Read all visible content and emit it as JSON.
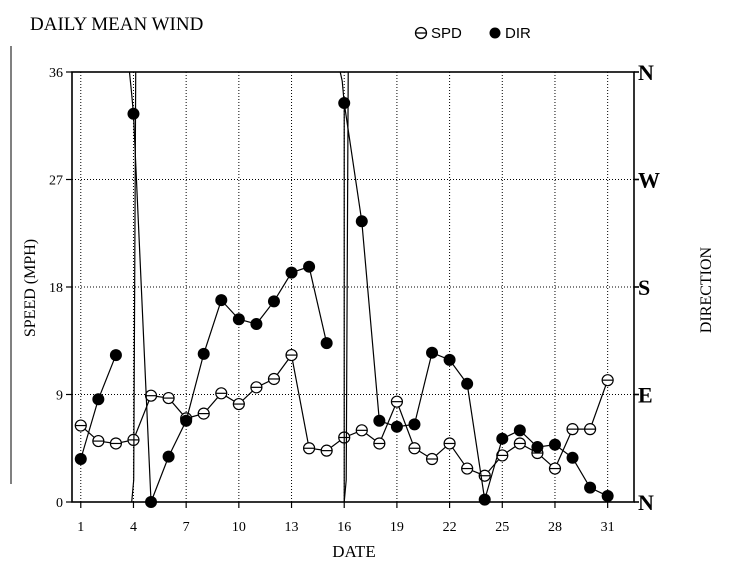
{
  "chart_data": {
    "type": "line",
    "title": "DAILY MEAN WIND",
    "xlabel": "DATE",
    "ylabel": "SPEED (MPH)",
    "y2label": "DIRECTION",
    "x_ticks": [
      1,
      4,
      7,
      10,
      13,
      16,
      19,
      22,
      25,
      28,
      31
    ],
    "xlim": [
      0.5,
      32.5
    ],
    "y_ticks": [
      "0",
      "9",
      "18",
      "27",
      "36"
    ],
    "ylim": [
      0,
      36
    ],
    "y2_ticks": [
      "N",
      "E",
      "S",
      "W",
      "N"
    ],
    "grid": true,
    "legend_placement": "top-right",
    "series": [
      {
        "name": "SPD",
        "marker": "open-circle",
        "x": [
          1,
          2,
          3,
          4,
          5,
          6,
          7,
          8,
          9,
          10,
          11,
          12,
          13,
          14,
          15,
          16,
          17,
          18,
          19,
          20,
          21,
          22,
          23,
          24,
          25,
          26,
          27,
          28,
          29,
          30,
          31
        ],
        "values": [
          6.4,
          5.1,
          4.9,
          5.2,
          8.9,
          8.7,
          7.0,
          7.4,
          9.1,
          8.2,
          9.6,
          10.3,
          12.3,
          4.5,
          4.3,
          5.4,
          6.0,
          4.9,
          8.4,
          4.5,
          3.6,
          4.9,
          2.8,
          2.2,
          3.9,
          4.9,
          4.1,
          2.8,
          6.1,
          6.1,
          10.2
        ]
      },
      {
        "name": "DIR",
        "marker": "filled-circle",
        "x": [
          1,
          2,
          3,
          3.9,
          4,
          5,
          6,
          7,
          8,
          9,
          10,
          11,
          12,
          13,
          14,
          15,
          16,
          16,
          17,
          18,
          19,
          20,
          21,
          22,
          23,
          24,
          25,
          26,
          27,
          28,
          29,
          30,
          31
        ],
        "values": [
          3.6,
          8.6,
          12.3,
          0,
          32.5,
          0,
          3.8,
          6.8,
          12.4,
          16.9,
          15.3,
          14.9,
          16.8,
          19.2,
          19.7,
          13.3,
          0,
          33.4,
          23.5,
          6.8,
          6.3,
          6.5,
          12.5,
          11.9,
          9.9,
          0.2,
          5.3,
          6.0,
          4.6,
          4.8,
          3.7,
          1.2,
          0.5
        ],
        "break_before": [
          3,
          4,
          16
        ],
        "markers_skip": [
          3,
          16
        ],
        "wrap_top": [
          3,
          4,
          16,
          17
        ]
      }
    ]
  },
  "legend": {
    "spd_label": "SPD",
    "dir_label": "DIR"
  }
}
